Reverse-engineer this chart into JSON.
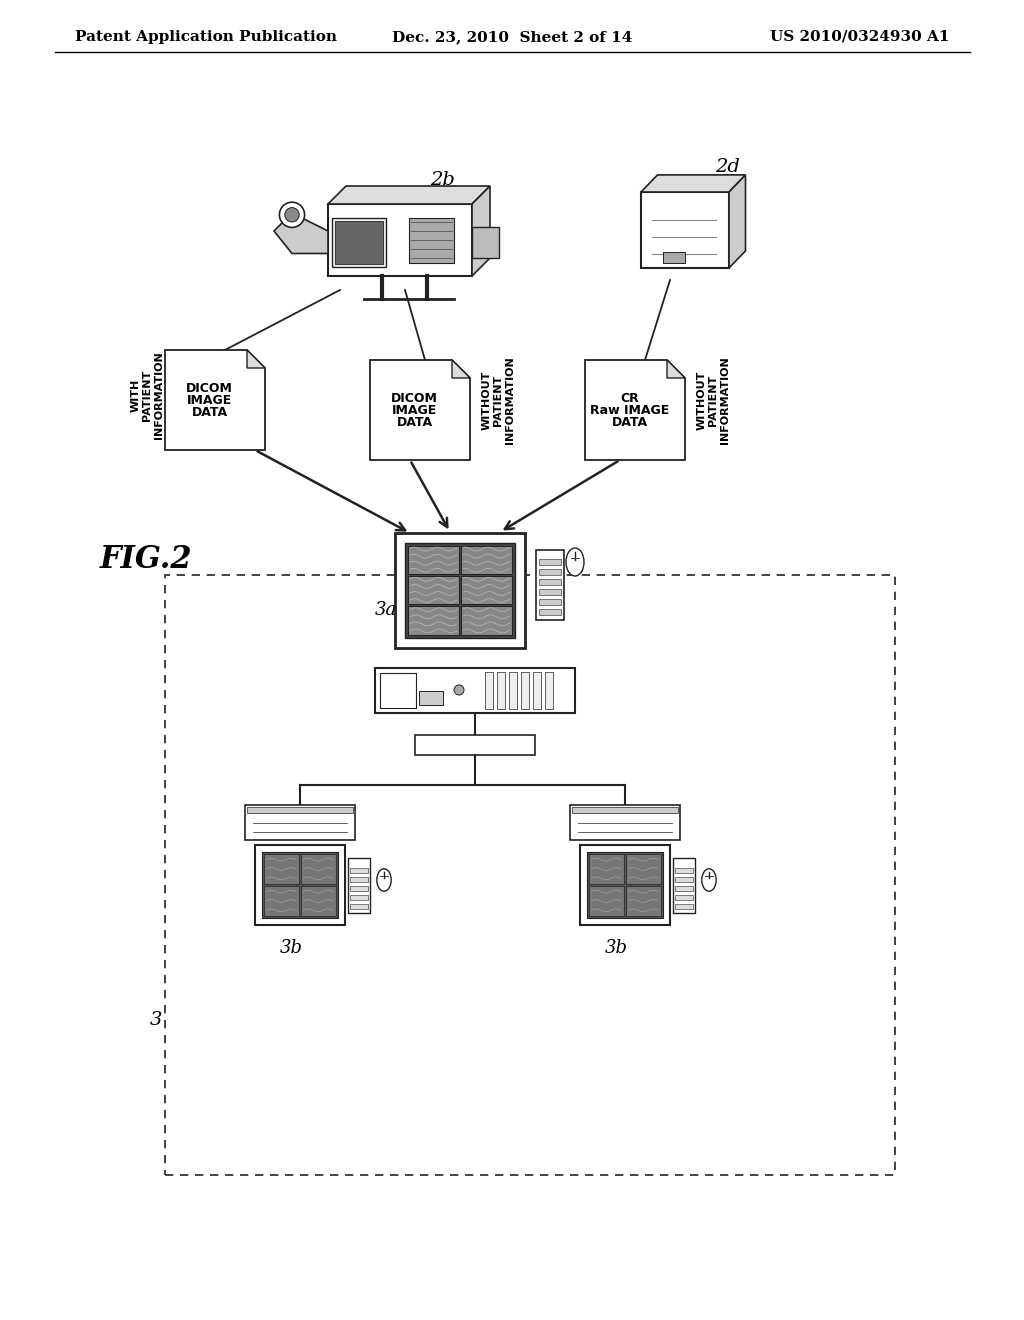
{
  "bg_color": "#ffffff",
  "header_left": "Patent Application Publication",
  "header_center": "Dec. 23, 2010  Sheet 2 of 14",
  "header_right": "US 2010/0324930 A1",
  "fig_label": "FIG.2",
  "device_2b_label": "2b",
  "device_2d_label": "2d",
  "node3_label": "3",
  "node3a_label": "3a",
  "node3b_label": "3b",
  "line_color": "#222222",
  "gray_light": "#cccccc",
  "gray_med": "#888888",
  "gray_dark": "#555555"
}
